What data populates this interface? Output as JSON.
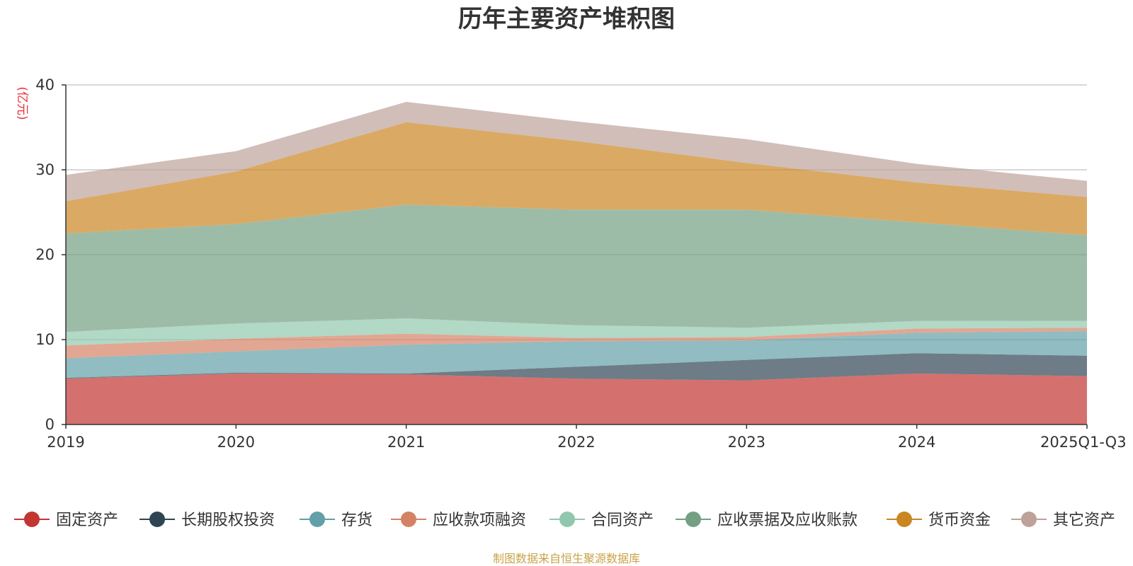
{
  "chart_data": {
    "type": "area",
    "stacked": true,
    "title": "历年主要资产堆积图",
    "ylabel": "(亿元)",
    "xlabel": "",
    "ylim": [
      0,
      40
    ],
    "yticks": [
      0,
      10,
      20,
      30,
      40
    ],
    "categories": [
      "2019",
      "2020",
      "2021",
      "2022",
      "2023",
      "2024",
      "2025Q1-Q3"
    ],
    "grid": true,
    "legend_position": "bottom",
    "series": [
      {
        "name": "固定资产",
        "color": "#c23531",
        "values": [
          5.4,
          6.0,
          5.9,
          5.4,
          5.2,
          6.0,
          5.7
        ]
      },
      {
        "name": "长期股权投资",
        "color": "#2f4554",
        "values": [
          0.1,
          0.1,
          0.1,
          1.4,
          2.4,
          2.4,
          2.4
        ]
      },
      {
        "name": "存货",
        "color": "#61a0a8",
        "values": [
          2.3,
          2.5,
          3.4,
          3.0,
          2.3,
          2.4,
          2.9
        ]
      },
      {
        "name": "应收款项融资",
        "color": "#d48265",
        "values": [
          1.5,
          1.5,
          1.3,
          0.4,
          0.4,
          0.5,
          0.4
        ]
      },
      {
        "name": "合同资产",
        "color": "#91c7ae",
        "values": [
          1.6,
          1.8,
          1.8,
          1.5,
          1.1,
          0.9,
          0.8
        ]
      },
      {
        "name": "应收票据及应收账款",
        "color": "#749f83",
        "values": [
          11.6,
          11.7,
          13.4,
          13.6,
          13.9,
          11.6,
          10.1
        ]
      },
      {
        "name": "货币资金",
        "color": "#ca8622",
        "values": [
          3.8,
          6.2,
          9.7,
          8.1,
          5.5,
          4.7,
          4.5
        ]
      },
      {
        "name": "其它资产",
        "color": "#bda29a",
        "values": [
          3.1,
          2.4,
          2.4,
          2.3,
          2.8,
          2.2,
          1.9
        ]
      }
    ]
  },
  "footer": {
    "source": "制图数据来自恒生聚源数据库"
  }
}
